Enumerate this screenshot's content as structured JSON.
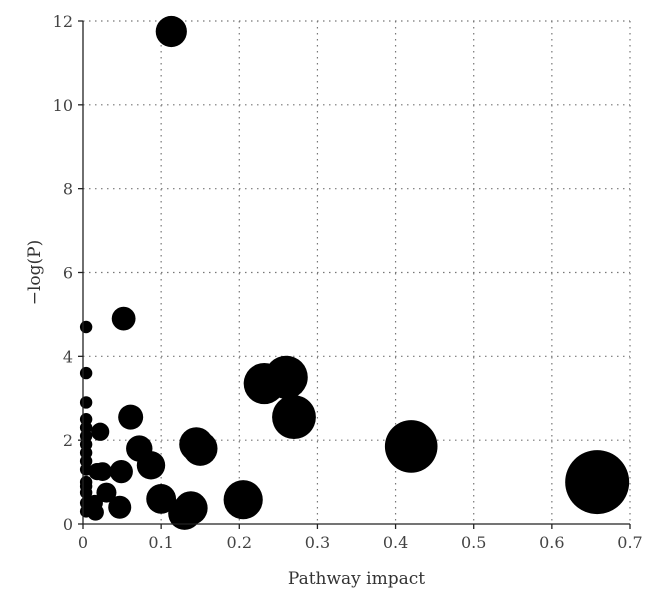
{
  "chart_data": {
    "type": "scatter",
    "title": "",
    "xlabel": "Pathway impact",
    "ylabel": "−log(P)",
    "xlim": [
      0,
      0.7
    ],
    "ylim": [
      0,
      12
    ],
    "x_ticks": [
      0,
      0.1,
      0.2,
      0.3,
      0.4,
      0.5,
      0.6,
      0.7
    ],
    "x_tick_labels": [
      "0",
      "0.1",
      "0.2",
      "0.3",
      "0.4",
      "0.5",
      "0.6",
      "0.7"
    ],
    "y_ticks": [
      0,
      2,
      4,
      6,
      8,
      10,
      12
    ],
    "y_tick_labels": [
      "0",
      "2",
      "4",
      "6",
      "8",
      "10",
      "12"
    ],
    "grid": true,
    "marker_color": "#000000",
    "marker_size_encodes": "Pathway impact",
    "points": [
      {
        "x": 0.113,
        "y": 11.75
      },
      {
        "x": 0.052,
        "y": 4.9
      },
      {
        "x": 0.004,
        "y": 4.7
      },
      {
        "x": 0.004,
        "y": 3.6
      },
      {
        "x": 0.26,
        "y": 3.5
      },
      {
        "x": 0.232,
        "y": 3.35
      },
      {
        "x": 0.004,
        "y": 2.9
      },
      {
        "x": 0.27,
        "y": 2.55
      },
      {
        "x": 0.061,
        "y": 2.55
      },
      {
        "x": 0.004,
        "y": 2.5
      },
      {
        "x": 0.004,
        "y": 2.3
      },
      {
        "x": 0.022,
        "y": 2.2
      },
      {
        "x": 0.004,
        "y": 2.1
      },
      {
        "x": 0.004,
        "y": 1.9
      },
      {
        "x": 0.145,
        "y": 1.9
      },
      {
        "x": 0.42,
        "y": 1.85
      },
      {
        "x": 0.15,
        "y": 1.8
      },
      {
        "x": 0.072,
        "y": 1.8
      },
      {
        "x": 0.004,
        "y": 1.7
      },
      {
        "x": 0.004,
        "y": 1.5
      },
      {
        "x": 0.087,
        "y": 1.4
      },
      {
        "x": 0.004,
        "y": 1.3
      },
      {
        "x": 0.018,
        "y": 1.25
      },
      {
        "x": 0.025,
        "y": 1.25
      },
      {
        "x": 0.049,
        "y": 1.25
      },
      {
        "x": 0.004,
        "y": 1.0
      },
      {
        "x": 0.658,
        "y": 1.0
      },
      {
        "x": 0.004,
        "y": 0.9
      },
      {
        "x": 0.004,
        "y": 0.75
      },
      {
        "x": 0.03,
        "y": 0.75
      },
      {
        "x": 0.1,
        "y": 0.6
      },
      {
        "x": 0.205,
        "y": 0.58
      },
      {
        "x": 0.004,
        "y": 0.5
      },
      {
        "x": 0.015,
        "y": 0.5
      },
      {
        "x": 0.047,
        "y": 0.4
      },
      {
        "x": 0.138,
        "y": 0.38
      },
      {
        "x": 0.004,
        "y": 0.3
      },
      {
        "x": 0.016,
        "y": 0.28
      },
      {
        "x": 0.13,
        "y": 0.25
      }
    ]
  }
}
